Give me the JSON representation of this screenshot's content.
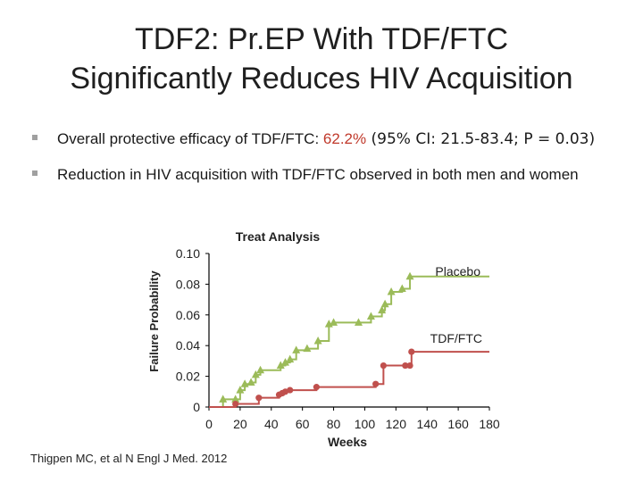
{
  "slide": {
    "title_line1": "TDF2: Pr.EP With TDF/FTC",
    "title_line2": "Significantly Reduces HIV Acquisition",
    "bullets": {
      "b1_pre": "Overall protective efficacy of TDF/FTC: ",
      "b1_value": "62.2%",
      "b1_ci": " (95% CI: 21.5-83.4; P = 0.03)",
      "b2": "Reduction in HIV acquisition with TDF/FTC observed in both men and women"
    },
    "citation": "Thigpen MC, et al N Engl J Med. 2012"
  },
  "chart_data": {
    "type": "line",
    "title": "Treat Analysis",
    "xlabel": "Weeks",
    "ylabel": "Failure Probability",
    "xlim": [
      0,
      180
    ],
    "ylim": [
      0,
      0.1
    ],
    "x_ticks": [
      "0",
      "20",
      "40",
      "60",
      "80",
      "100",
      "120",
      "140",
      "160",
      "180"
    ],
    "y_ticks": [
      "0",
      "0.02",
      "0.04",
      "0.06",
      "0.08",
      "0.10"
    ],
    "colors": {
      "placebo": "#9bbb59",
      "tdf_ftc": "#c0504d",
      "axis": "#000000"
    },
    "series": [
      {
        "name": "Placebo",
        "step": true,
        "marker": "triangle",
        "points": [
          [
            0,
            0
          ],
          [
            9,
            0.005
          ],
          [
            17,
            0.005
          ],
          [
            20,
            0.011
          ],
          [
            23,
            0.015
          ],
          [
            27,
            0.016
          ],
          [
            30,
            0.021
          ],
          [
            33,
            0.024
          ],
          [
            46,
            0.027
          ],
          [
            49,
            0.029
          ],
          [
            52,
            0.031
          ],
          [
            56,
            0.037
          ],
          [
            63,
            0.038
          ],
          [
            70,
            0.043
          ],
          [
            77,
            0.054
          ],
          [
            80,
            0.055
          ],
          [
            96,
            0.055
          ],
          [
            104,
            0.059
          ],
          [
            111,
            0.063
          ],
          [
            113,
            0.067
          ],
          [
            117,
            0.075
          ],
          [
            124,
            0.077
          ],
          [
            129,
            0.085
          ],
          [
            180,
            0.085
          ]
        ]
      },
      {
        "name": "TDF/FTC",
        "step": true,
        "marker": "circle",
        "points": [
          [
            0,
            0
          ],
          [
            17,
            0.002
          ],
          [
            32,
            0.006
          ],
          [
            45,
            0.008
          ],
          [
            47,
            0.009
          ],
          [
            49,
            0.01
          ],
          [
            52,
            0.011
          ],
          [
            69,
            0.013
          ],
          [
            107,
            0.015
          ],
          [
            112,
            0.027
          ],
          [
            126,
            0.027
          ],
          [
            129,
            0.027
          ],
          [
            130,
            0.036
          ],
          [
            180,
            0.036
          ]
        ]
      }
    ]
  }
}
